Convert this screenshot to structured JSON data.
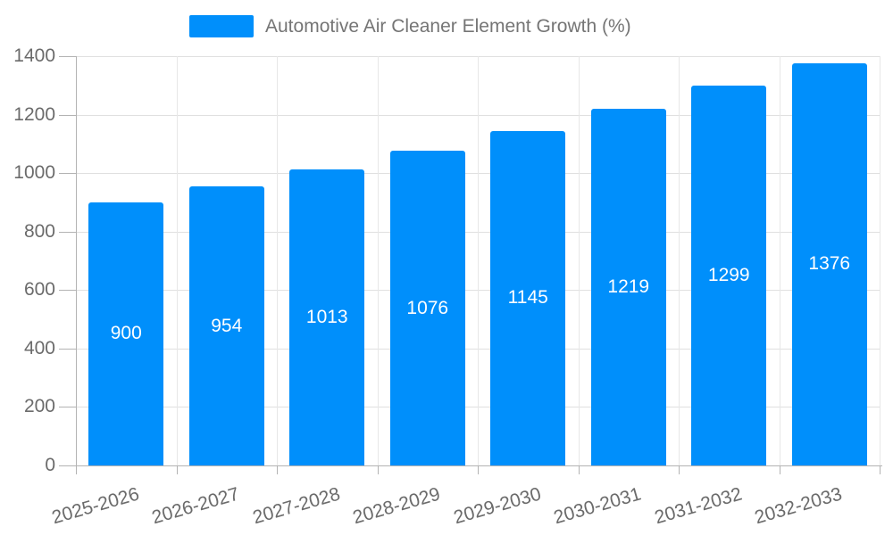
{
  "legend": {
    "label": "Automotive Air Cleaner Element Growth (%)"
  },
  "colors": {
    "bar": "#008FFB",
    "grid": "#e0e0e0",
    "axis": "#b3b3b3",
    "tick_label": "#6b6b6b",
    "legend_text": "#757575",
    "bar_label": "#ffffff",
    "background": "#ffffff"
  },
  "chart_data": {
    "type": "bar",
    "title": "Automotive Air Cleaner Element Growth (%)",
    "categories": [
      "2025-2026",
      "2026-2027",
      "2027-2028",
      "2028-2029",
      "2029-2030",
      "2030-2031",
      "2031-2032",
      "2032-2033"
    ],
    "values": [
      900,
      954,
      1013,
      1076,
      1145,
      1219,
      1299,
      1376
    ],
    "bar_labels": [
      "900",
      "954",
      "1013",
      "1076",
      "1145",
      "1219",
      "1299",
      "1376"
    ],
    "y_ticks": [
      0,
      200,
      400,
      600,
      800,
      1000,
      1200,
      1400
    ],
    "ylim": [
      0,
      1400
    ],
    "xlabel": "",
    "ylabel": "",
    "grid": true,
    "legend_position": "top",
    "x_label_rotation_deg": -16
  }
}
